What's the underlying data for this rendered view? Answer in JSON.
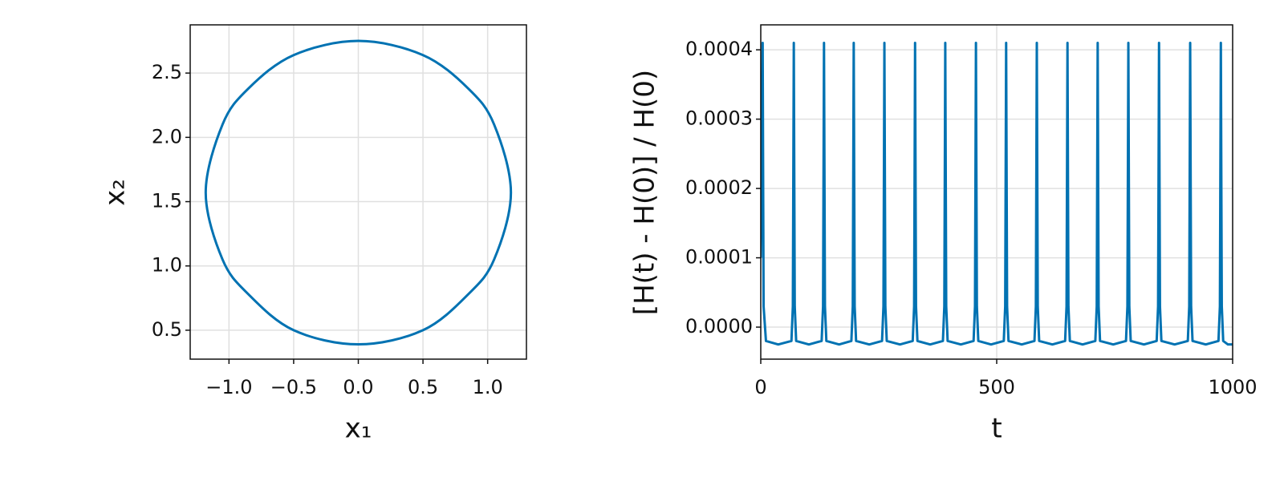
{
  "chart_data": [
    {
      "type": "line",
      "xlabel": "x₁",
      "ylabel": "x₂",
      "color": "#0072b2",
      "grid": true,
      "x": [
        0,
        0.5,
        0.85,
        1.05,
        1.18,
        1.05,
        0.85,
        0.5,
        0,
        -0.5,
        -0.85,
        -1.05,
        -1.18,
        -1.05,
        -0.85,
        -0.5,
        0
      ],
      "values": [
        2.75,
        2.64,
        2.38,
        2.1,
        1.57,
        1.05,
        0.78,
        0.5,
        0.39,
        0.5,
        0.78,
        1.05,
        1.57,
        2.1,
        2.38,
        2.64,
        2.75
      ],
      "xlim": [
        -1.3,
        1.3
      ],
      "ylim": [
        0.275,
        2.875
      ],
      "xticks": [
        {
          "value": -1.0,
          "label": "−1.0"
        },
        {
          "value": -0.5,
          "label": "−0.5"
        },
        {
          "value": 0,
          "label": "0.0"
        },
        0.5,
        {
          "value": 1.0,
          "label": "1.0"
        }
      ],
      "yticks": [
        0.5,
        {
          "value": 1.0,
          "label": "1.0"
        },
        1.5,
        {
          "value": 2.0,
          "label": "2.0"
        },
        2.5
      ]
    },
    {
      "type": "line",
      "xlabel": "t",
      "ylabel": "[H(t) - H(0)] / H(0)",
      "color": "#0072b2",
      "grid": true,
      "x": [
        0,
        4,
        6,
        11,
        37,
        65,
        68,
        70,
        72,
        75,
        102,
        129,
        132,
        134,
        136,
        139,
        166,
        192,
        195,
        197,
        199,
        202,
        230,
        257,
        260,
        262,
        264,
        267,
        295,
        322,
        325,
        327,
        329,
        332,
        359,
        386,
        389,
        391,
        393,
        396,
        424,
        451,
        454,
        456,
        458,
        461,
        488,
        515,
        518,
        520,
        522,
        525,
        553,
        580,
        583,
        585,
        587,
        590,
        618,
        645,
        648,
        650,
        652,
        655,
        682,
        709,
        712,
        714,
        716,
        719,
        747,
        774,
        777,
        779,
        781,
        784,
        812,
        839,
        842,
        844,
        846,
        849,
        877,
        905,
        908,
        910,
        912,
        915,
        943,
        970,
        973,
        975,
        977,
        980,
        990,
        1000
      ],
      "values": [
        0.0001,
        0.00041,
        3e-05,
        -2e-05,
        -2.5e-05,
        -2e-05,
        3e-05,
        0.00041,
        3e-05,
        -2e-05,
        -2.5e-05,
        -2e-05,
        3e-05,
        0.00041,
        3e-05,
        -2e-05,
        -2.5e-05,
        -2e-05,
        3e-05,
        0.00041,
        3e-05,
        -2e-05,
        -2.5e-05,
        -2e-05,
        3e-05,
        0.00041,
        3e-05,
        -2e-05,
        -2.5e-05,
        -2e-05,
        3e-05,
        0.00041,
        3e-05,
        -2e-05,
        -2.5e-05,
        -2e-05,
        3e-05,
        0.00041,
        3e-05,
        -2e-05,
        -2.5e-05,
        -2e-05,
        3e-05,
        0.00041,
        3e-05,
        -2e-05,
        -2.5e-05,
        -2e-05,
        3e-05,
        0.00041,
        3e-05,
        -2e-05,
        -2.5e-05,
        -2e-05,
        3e-05,
        0.00041,
        3e-05,
        -2e-05,
        -2.5e-05,
        -2e-05,
        3e-05,
        0.00041,
        3e-05,
        -2e-05,
        -2.5e-05,
        -2e-05,
        3e-05,
        0.00041,
        3e-05,
        -2e-05,
        -2.5e-05,
        -2e-05,
        3e-05,
        0.00041,
        3e-05,
        -2e-05,
        -2.5e-05,
        -2e-05,
        3e-05,
        0.00041,
        3e-05,
        -2e-05,
        -2.5e-05,
        -2e-05,
        3e-05,
        0.00041,
        3e-05,
        -2e-05,
        -2.5e-05,
        -2e-05,
        3e-05,
        0.00041,
        3e-05,
        -2e-05,
        -2.5e-05,
        -2.5e-05
      ],
      "xlim": [
        0,
        1000
      ],
      "ylim": [
        -4.62e-05,
        0.000436
      ],
      "xticks": [
        0,
        500,
        1000
      ],
      "yticks": [
        {
          "value": 0,
          "label": "0.0000"
        },
        0.0001,
        0.0002,
        0.0003,
        0.0004
      ]
    }
  ]
}
